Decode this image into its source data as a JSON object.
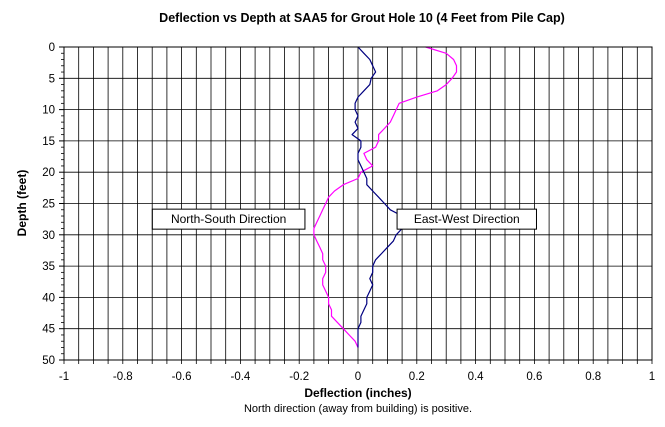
{
  "chart_data": {
    "type": "line",
    "title": "Deflection vs Depth at SAA5 for Grout Hole 10 (4 Feet from Pile Cap)",
    "xlabel": "Deflection (inches)",
    "ylabel": "Depth (feet)",
    "note": "North direction (away from building) is positive.",
    "xlim": [
      -1,
      1
    ],
    "ylim": [
      0,
      50
    ],
    "y_inverted": true,
    "x_ticks": [
      "-1",
      "-0.8",
      "-0.6",
      "-0.4",
      "-0.2",
      "0",
      "0.2",
      "0.4",
      "0.6",
      "0.8",
      "1"
    ],
    "y_ticks": [
      "0",
      "5",
      "10",
      "15",
      "20",
      "25",
      "30",
      "35",
      "40",
      "45",
      "50"
    ],
    "grid": true,
    "annotations": [
      {
        "text": "North-South Direction",
        "x": -0.44,
        "y": 27.5
      },
      {
        "text": "East-West Direction",
        "x": 0.37,
        "y": 27.5
      }
    ],
    "series": [
      {
        "color": "#ff00ff",
        "points": [
          [
            0.23,
            0
          ],
          [
            0.3,
            1
          ],
          [
            0.325,
            2
          ],
          [
            0.335,
            3
          ],
          [
            0.335,
            4
          ],
          [
            0.32,
            5
          ],
          [
            0.3,
            6
          ],
          [
            0.27,
            7
          ],
          [
            0.2,
            8
          ],
          [
            0.14,
            9
          ],
          [
            0.13,
            10
          ],
          [
            0.12,
            11
          ],
          [
            0.11,
            12
          ],
          [
            0.09,
            13
          ],
          [
            0.07,
            14
          ],
          [
            0.07,
            15
          ],
          [
            0.06,
            16
          ],
          [
            0.02,
            17
          ],
          [
            0.03,
            18
          ],
          [
            0.05,
            19
          ],
          [
            0.01,
            20
          ],
          [
            0.0,
            21
          ],
          [
            -0.05,
            22
          ],
          [
            -0.08,
            23
          ],
          [
            -0.1,
            24
          ],
          [
            -0.11,
            25
          ],
          [
            -0.12,
            26
          ],
          [
            -0.13,
            27
          ],
          [
            -0.14,
            28
          ],
          [
            -0.15,
            29
          ],
          [
            -0.15,
            30
          ],
          [
            -0.14,
            31
          ],
          [
            -0.13,
            32
          ],
          [
            -0.12,
            33
          ],
          [
            -0.12,
            34
          ],
          [
            -0.11,
            35
          ],
          [
            -0.11,
            36
          ],
          [
            -0.12,
            37
          ],
          [
            -0.12,
            38
          ],
          [
            -0.11,
            39
          ],
          [
            -0.1,
            40
          ],
          [
            -0.1,
            41
          ],
          [
            -0.09,
            42
          ],
          [
            -0.09,
            43
          ],
          [
            -0.07,
            44
          ],
          [
            -0.05,
            45
          ],
          [
            -0.03,
            46
          ],
          [
            -0.01,
            47
          ],
          [
            0.0,
            48
          ]
        ]
      },
      {
        "color": "#000080",
        "points": [
          [
            0.0,
            0
          ],
          [
            0.02,
            1
          ],
          [
            0.04,
            2
          ],
          [
            0.05,
            3
          ],
          [
            0.06,
            4
          ],
          [
            0.045,
            5
          ],
          [
            0.04,
            6
          ],
          [
            0.02,
            7
          ],
          [
            0.0,
            8
          ],
          [
            -0.01,
            9
          ],
          [
            -0.01,
            10
          ],
          [
            0.0,
            11
          ],
          [
            -0.01,
            12
          ],
          [
            0.0,
            13
          ],
          [
            -0.02,
            14
          ],
          [
            0.01,
            15
          ],
          [
            0.01,
            16
          ],
          [
            0.0,
            17
          ],
          [
            0.0,
            18
          ],
          [
            0.01,
            19
          ],
          [
            0.02,
            20
          ],
          [
            0.03,
            21
          ],
          [
            0.03,
            22
          ],
          [
            0.05,
            23
          ],
          [
            0.07,
            24
          ],
          [
            0.09,
            25
          ],
          [
            0.11,
            26
          ],
          [
            0.15,
            27
          ],
          [
            0.17,
            28
          ],
          [
            0.15,
            29
          ],
          [
            0.13,
            30
          ],
          [
            0.12,
            31
          ],
          [
            0.1,
            32
          ],
          [
            0.08,
            33
          ],
          [
            0.06,
            34
          ],
          [
            0.05,
            35
          ],
          [
            0.05,
            36
          ],
          [
            0.04,
            37
          ],
          [
            0.05,
            38
          ],
          [
            0.04,
            39
          ],
          [
            0.03,
            40
          ],
          [
            0.03,
            41
          ],
          [
            0.02,
            42
          ],
          [
            0.01,
            43
          ],
          [
            0.01,
            44
          ],
          [
            0.0,
            45
          ],
          [
            0.0,
            46
          ],
          [
            0.0,
            47
          ],
          [
            0.0,
            48
          ]
        ]
      }
    ]
  }
}
